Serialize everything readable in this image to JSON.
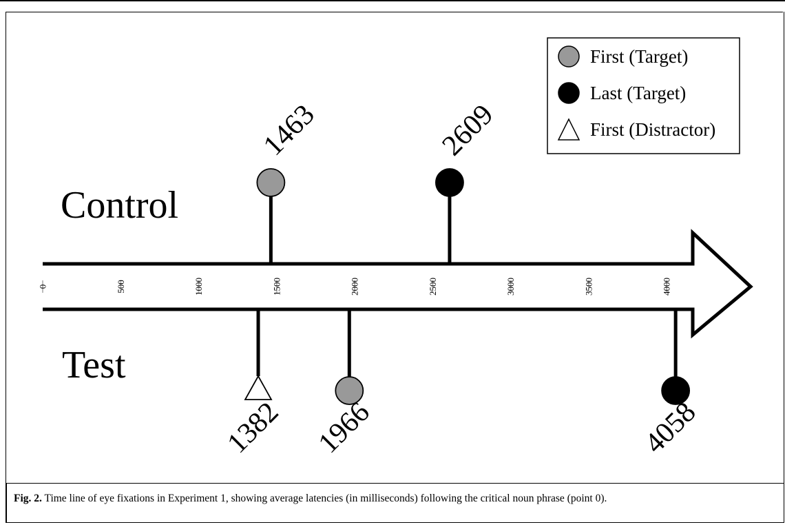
{
  "chart_data": {
    "type": "timeline",
    "axis": {
      "ticks": [
        0,
        500,
        1000,
        1500,
        2000,
        2500,
        3000,
        3500,
        4000
      ],
      "xlim": [
        0,
        4500
      ]
    },
    "rows": [
      {
        "label": "Control",
        "side": "above"
      },
      {
        "label": "Test",
        "side": "below"
      }
    ],
    "events": [
      {
        "row": "Control",
        "series": "First (Target)",
        "value": 1463,
        "label": "1463"
      },
      {
        "row": "Control",
        "series": "Last (Target)",
        "value": 2609,
        "label": "2609"
      },
      {
        "row": "Test",
        "series": "First (Distractor)",
        "value": 1382,
        "label": "1382"
      },
      {
        "row": "Test",
        "series": "First (Target)",
        "value": 1966,
        "label": "1966"
      },
      {
        "row": "Test",
        "series": "Last (Target)",
        "value": 4058,
        "label": "4058"
      }
    ],
    "legend": {
      "position": "top-right",
      "entries": [
        {
          "name": "First (Target)",
          "marker": "circle",
          "color": "#999999"
        },
        {
          "name": "Last (Target)",
          "marker": "circle",
          "color": "#000000"
        },
        {
          "name": "First (Distractor)",
          "marker": "triangle",
          "color": "#ffffff"
        }
      ]
    }
  },
  "caption": {
    "label": "Fig. 2.",
    "text": "Time line of eye fixations in Experiment 1, showing average latencies (in milliseconds) following the critical noun phrase (point 0)."
  }
}
